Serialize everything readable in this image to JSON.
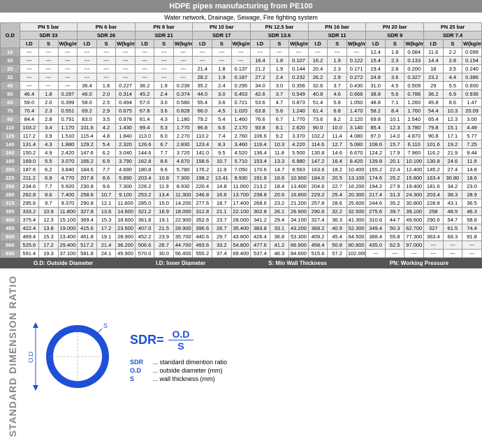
{
  "title": "HDPE pipes manufacturing from PE100",
  "subtitle": "Water network, Drainage, Sewage, Fire fighting system",
  "legend": {
    "od": "O.D: Outside Diameter",
    "id": "I.D: Inner Diameter",
    "s": "S: Min Wall Thickness",
    "pn": "PN: Working Pressure"
  },
  "headers": {
    "od": "O.D",
    "pn": [
      "PN 5 bar",
      "PN 6 bar",
      "PN 8 bar",
      "PN 10 bar",
      "PN 12.5 bar",
      "PN 16 bar",
      "PN 20 bar",
      "PN 25 bar"
    ],
    "sdr": [
      "SDR 33",
      "SDR 26",
      "SDR 21",
      "SDR 17",
      "SDR 13.6",
      "SDR 11",
      "SDR 9",
      "SDR 7.4"
    ],
    "cols": [
      "I.D",
      "S",
      "W(kg/m)"
    ]
  },
  "formula": {
    "lhs": "SDR=",
    "num": "O.D",
    "den": "S"
  },
  "legend_items": [
    {
      "k": "SDR",
      "t": "... standard dimention ratio"
    },
    {
      "k": "O.D",
      "t": "... outside diameter    (mm)"
    },
    {
      "k": "S",
      "t": "... wall thickness      (mm)"
    }
  ],
  "sdr_vert": "STANDARD DIMENSION RATIO",
  "rows": [
    {
      "od": "16",
      "g": [
        [
          "---",
          "---",
          "---"
        ],
        [
          "---",
          "---",
          "---"
        ],
        [
          "---",
          "---",
          "---"
        ],
        [
          "---",
          "---",
          "---"
        ],
        [
          "---",
          "---",
          "---"
        ],
        [
          "---",
          "---",
          "---"
        ],
        [
          "12.4",
          "1.8",
          "0.084"
        ],
        [
          "11.6",
          "2.2",
          "0.099"
        ]
      ]
    },
    {
      "od": "20",
      "g": [
        [
          "---",
          "---",
          "---"
        ],
        [
          "---",
          "---",
          "---"
        ],
        [
          "---",
          "---",
          "---"
        ],
        [
          "---",
          "---",
          "---"
        ],
        [
          "16.4",
          "1.8",
          "0.107"
        ],
        [
          "16.2",
          "1.9",
          "0.122"
        ],
        [
          "15.4",
          "2.3",
          "0.133"
        ],
        [
          "14.4",
          "2.8",
          "0.154"
        ]
      ]
    },
    {
      "od": "25",
      "g": [
        [
          "---",
          "---",
          "---"
        ],
        [
          "---",
          "---",
          "---"
        ],
        [
          "---",
          "---",
          "---"
        ],
        [
          "21.4",
          "1.8",
          "0.137"
        ],
        [
          "21.2",
          "1.9",
          "0.144"
        ],
        [
          "20.4",
          "2.3",
          "0.171"
        ],
        [
          "19.4",
          "2.8",
          "0.200"
        ],
        [
          "18",
          "3.5",
          "0.240"
        ]
      ]
    },
    {
      "od": "32",
      "g": [
        [
          "---",
          "---",
          "---"
        ],
        [
          "---",
          "---",
          "---"
        ],
        [
          "---",
          "---",
          "---"
        ],
        [
          "28.2",
          "1.9",
          "0.187"
        ],
        [
          "27.2",
          "2.4",
          "0.232"
        ],
        [
          "26.2",
          "2.9",
          "0.272"
        ],
        [
          "24.8",
          "3.6",
          "0.327"
        ],
        [
          "23.2",
          "4.4",
          "0.386"
        ]
      ]
    },
    {
      "od": "40",
      "g": [
        [
          "---",
          "---",
          "---"
        ],
        [
          "36.4",
          "1.8",
          "0.227"
        ],
        [
          "36.2",
          "1.9",
          "0.239"
        ],
        [
          "35.2",
          "2.4",
          "0.295"
        ],
        [
          "34.0",
          "3.0",
          "0.356"
        ],
        [
          "32.6",
          "3.7",
          "0.430"
        ],
        [
          "31.0",
          "4.5",
          "0.509"
        ],
        [
          "29",
          "5.5",
          "0.600"
        ]
      ]
    },
    {
      "od": "50",
      "g": [
        [
          "46.4",
          "1.8",
          "0.287"
        ],
        [
          "46.0",
          "2.0",
          "0.314"
        ],
        [
          "45.2",
          "2.4",
          "0.374"
        ],
        [
          "44.0",
          "3.0",
          "0.453"
        ],
        [
          "42.6",
          "3.7",
          "0.549"
        ],
        [
          "40.8",
          "4.6",
          "0.666"
        ],
        [
          "38.8",
          "5.6",
          "0.788"
        ],
        [
          "36.2",
          "6.9",
          "0.936"
        ]
      ]
    },
    {
      "od": "63",
      "g": [
        [
          "59.0",
          "2.0",
          "0.399"
        ],
        [
          "58.0",
          "2.5",
          "0.494"
        ],
        [
          "57.0",
          "3.0",
          "0.580"
        ],
        [
          "55.4",
          "3.6",
          "0.721"
        ],
        [
          "53.6",
          "4.7",
          "0.873"
        ],
        [
          "51.4",
          "5.8",
          "1.050"
        ],
        [
          "48.8",
          "7.1",
          "1.260"
        ],
        [
          "45.8",
          "8.6",
          "1.47"
        ]
      ]
    },
    {
      "od": "75",
      "g": [
        [
          "70.4",
          "2.3",
          "0.551"
        ],
        [
          "69.2",
          "2.9",
          "0.675"
        ],
        [
          "67.8",
          "3.6",
          "0.828"
        ],
        [
          "66.0",
          "4.5",
          "1.020"
        ],
        [
          "63.8",
          "5.6",
          "1.240"
        ],
        [
          "61.4",
          "6.8",
          "1.470"
        ],
        [
          "58.2",
          "8.4",
          "1.760"
        ],
        [
          "54.4",
          "10.3",
          "20.09"
        ]
      ]
    },
    {
      "od": "90",
      "g": [
        [
          "84.4",
          "2.8",
          "0.791"
        ],
        [
          "83.0",
          "3.5",
          "0.978"
        ],
        [
          "81.4",
          "4.3",
          "1.180"
        ],
        [
          "79.2",
          "5.4",
          "1.460"
        ],
        [
          "76.6",
          "6.7",
          "1.770"
        ],
        [
          "73.6",
          "8.2",
          "2.120"
        ],
        [
          "69.8",
          "10.1",
          "2.540"
        ],
        [
          "65.4",
          "12.3",
          "3.00"
        ]
      ]
    },
    {
      "od": "110",
      "g": [
        [
          "103.2",
          "3.4",
          "1.170"
        ],
        [
          "101.6",
          "4.2",
          "1.430"
        ],
        [
          "99.4",
          "5.3",
          "1.770"
        ],
        [
          "96.8",
          "6.6",
          "2.170"
        ],
        [
          "93.8",
          "8.1",
          "2.620"
        ],
        [
          "90.0",
          "10.0",
          "3.140"
        ],
        [
          "85.4",
          "12.3",
          "3.780"
        ],
        [
          "79.8",
          "15.1",
          "4.49"
        ]
      ]
    },
    {
      "od": "125",
      "g": [
        [
          "117.2",
          "3.9",
          "1.510"
        ],
        [
          "115.4",
          "4.8",
          "1.840"
        ],
        [
          "113.0",
          "6.0",
          "2.270"
        ],
        [
          "110.2",
          "7.4",
          "2.760"
        ],
        [
          "106.6",
          "9.2",
          "3.370"
        ],
        [
          "102.2",
          "11.4",
          "4.080"
        ],
        [
          "97.0",
          "14.0",
          "4.870"
        ],
        [
          "90.8",
          "17.1",
          "5.77"
        ]
      ]
    },
    {
      "od": "140",
      "g": [
        [
          "131.4",
          "4.3",
          "1.880"
        ],
        [
          "129.2",
          "5.4",
          "2.320"
        ],
        [
          "126.6",
          "6.7",
          "2.830"
        ],
        [
          "123.4",
          "8.3",
          "3.460"
        ],
        [
          "119.4",
          "10.3",
          "4.220"
        ],
        [
          "114.6",
          "12.7",
          "5.080"
        ],
        [
          "108.6",
          "15.7",
          "6.110"
        ],
        [
          "101.6",
          "19.2",
          "7.25"
        ]
      ]
    },
    {
      "od": "160",
      "g": [
        [
          "150.2",
          "4.9",
          "2.420"
        ],
        [
          "147.6",
          "6.2",
          "3.040"
        ],
        [
          "144.6",
          "7.7",
          "3.720"
        ],
        [
          "141.0",
          "9.5",
          "4.520"
        ],
        [
          "136.4",
          "11.8",
          "5.500"
        ],
        [
          "130.8",
          "14.6",
          "6.670"
        ],
        [
          "124.2",
          "17.9",
          "7.960"
        ],
        [
          "116.2",
          "21.9",
          "9.44"
        ]
      ]
    },
    {
      "od": "180",
      "g": [
        [
          "169.0",
          "5.5",
          "3.070"
        ],
        [
          "166.2",
          "6.9",
          "3.790"
        ],
        [
          "162.8",
          "8.6",
          "4.670"
        ],
        [
          "158.6",
          "10.7",
          "5.710"
        ],
        [
          "153.4",
          "13.3",
          "6.980"
        ],
        [
          "147.2",
          "16.4",
          "8.420"
        ],
        [
          "139.8",
          "20.1",
          "10.100"
        ],
        [
          "130.8",
          "24.6",
          "11.9"
        ]
      ]
    },
    {
      "od": "200",
      "g": [
        [
          "187.6",
          "6.2",
          "3.840"
        ],
        [
          "184.6",
          "7.7",
          "4.690"
        ],
        [
          "180.8",
          "9.6",
          "5.780"
        ],
        [
          "176.2",
          "11.9",
          "7.050"
        ],
        [
          "170.6",
          "14.7",
          "8.563"
        ],
        [
          "163.6",
          "18.2",
          "10.400"
        ],
        [
          "155.2",
          "22.4",
          "12.400"
        ],
        [
          "145.2",
          "27.4",
          "14.8"
        ]
      ]
    },
    {
      "od": "225",
      "g": [
        [
          "211.2",
          "6.9",
          "4.770"
        ],
        [
          "207.8",
          "8.6",
          "5.890"
        ],
        [
          "203.4",
          "10.8",
          "7.300"
        ],
        [
          "198.2",
          "13.41",
          "8.930"
        ],
        [
          "191.8",
          "16.6",
          "10.900"
        ],
        [
          "184.0",
          "20.5",
          "13.100"
        ],
        [
          "174.6",
          "25.2",
          "15.800"
        ],
        [
          "163.4",
          "30.80",
          "18.6"
        ]
      ]
    },
    {
      "od": "250",
      "g": [
        [
          "234.6",
          "7.7",
          "5.920"
        ],
        [
          "230.8",
          "9.6",
          "7.300"
        ],
        [
          "226.2",
          "11.9",
          "8.930"
        ],
        [
          "220.4",
          "14.8",
          "11.000"
        ],
        [
          "213.2",
          "18.4",
          "13.400"
        ],
        [
          "204.6",
          "22.7",
          "16.200"
        ],
        [
          "194.2",
          "27.9",
          "19.400"
        ],
        [
          "181.6",
          "34.2",
          "23.0"
        ]
      ]
    },
    {
      "od": "280",
      "g": [
        [
          "262.8",
          "8.6",
          "7.400"
        ],
        [
          "258.6",
          "10.7",
          "9.100"
        ],
        [
          "253.2",
          "13.4",
          "11.300"
        ],
        [
          "246.8",
          "16.6",
          "13.700"
        ],
        [
          "238.8",
          "20.6",
          "16.800"
        ],
        [
          "229.2",
          "25.4",
          "20.300"
        ],
        [
          "217.4",
          "31.3",
          "24.300"
        ],
        [
          "203.4",
          "38.3",
          "28.9"
        ]
      ]
    },
    {
      "od": "315",
      "g": [
        [
          "295.6",
          "9.7",
          "9.370"
        ],
        [
          "290.8",
          "12.1",
          "11.600"
        ],
        [
          "285.0",
          "15.0",
          "14.200"
        ],
        [
          "277.6",
          "18.7",
          "17.400"
        ],
        [
          "268.6",
          "23.2",
          "21.200"
        ],
        [
          "257.8",
          "28.6",
          "25.600"
        ],
        [
          "244.6",
          "35.2",
          "30.800"
        ],
        [
          "228.8",
          "43.1",
          "36.5"
        ]
      ]
    },
    {
      "od": "355",
      "g": [
        [
          "333.2",
          "10.9",
          "11.800"
        ],
        [
          "327.8",
          "13.6",
          "14.600"
        ],
        [
          "321.2",
          "16.9",
          "18.000"
        ],
        [
          "312.8",
          "21.1",
          "22.100"
        ],
        [
          "302.8",
          "26.1",
          "26.900"
        ],
        [
          "290.6",
          "32.2",
          "32.500"
        ],
        [
          "275.6",
          "39.7",
          "39.100"
        ],
        [
          "258",
          "48.5",
          "46.3"
        ]
      ]
    },
    {
      "od": "400",
      "g": [
        [
          "375.4",
          "12.3",
          "15.100"
        ],
        [
          "369.4",
          "15.3",
          "18.600"
        ],
        [
          "361.8",
          "19.1",
          "22.900"
        ],
        [
          "352.6",
          "23.7",
          "28.000"
        ],
        [
          "341.2",
          "29.4",
          "34.100"
        ],
        [
          "327.4",
          "36.3",
          "41.300"
        ],
        [
          "310.6",
          "44.7",
          "49.600"
        ],
        [
          "290.6",
          "54.7",
          "58.8"
        ]
      ]
    },
    {
      "od": "450",
      "g": [
        [
          "422.4",
          "13.8",
          "19.000"
        ],
        [
          "415.6",
          "17.2",
          "23.500"
        ],
        [
          "407.0",
          "21.5",
          "28.900"
        ],
        [
          "396.6",
          "26.7",
          "35.400"
        ],
        [
          "383.8",
          "33.1",
          "43.200"
        ],
        [
          "368.2",
          "40.9",
          "52.300"
        ],
        [
          "349.4",
          "50.3",
          "62.700"
        ],
        [
          "327",
          "61.5",
          "74.4"
        ]
      ]
    },
    {
      "od": "500",
      "g": [
        [
          "469.4",
          "15.3",
          "23.400"
        ],
        [
          "461.8",
          "19.1",
          "28.900"
        ],
        [
          "452.2",
          "23.9",
          "35.700"
        ],
        [
          "440.6",
          "29.7",
          "43.800"
        ],
        [
          "426.4",
          "36.8",
          "53.300"
        ],
        [
          "409.2",
          "45.4",
          "64.500"
        ],
        [
          "388.4",
          "55.8",
          "77.300"
        ],
        [
          "363.4",
          "68.3",
          "91.8"
        ]
      ]
    },
    {
      "od": "560",
      "g": [
        [
          "525.6",
          "17.2",
          "29.400"
        ],
        [
          "517.2",
          "21.4",
          "36.200"
        ],
        [
          "506.6",
          "26.7",
          "44.700"
        ],
        [
          "493.6",
          "33.2",
          "54.800"
        ],
        [
          "477.6",
          "41.2",
          "66.900"
        ],
        [
          "458.4",
          "50.8",
          "80.800"
        ],
        [
          "435.0",
          "62.5",
          "97.000"
        ],
        [
          "---",
          "---",
          "---"
        ]
      ]
    },
    {
      "od": "630",
      "g": [
        [
          "591.4",
          "19.3",
          "37.100"
        ],
        [
          "581.8",
          "24.1",
          "45.900"
        ],
        [
          "570.0",
          "30.0",
          "56.400"
        ],
        [
          "555.2",
          "37.4",
          "69.400"
        ],
        [
          "537.4",
          "46.3",
          "84.600"
        ],
        [
          "515.6",
          "57.2",
          "102.000"
        ],
        [
          "---",
          "---",
          "---"
        ],
        [
          "---",
          "---",
          "---"
        ]
      ]
    }
  ]
}
